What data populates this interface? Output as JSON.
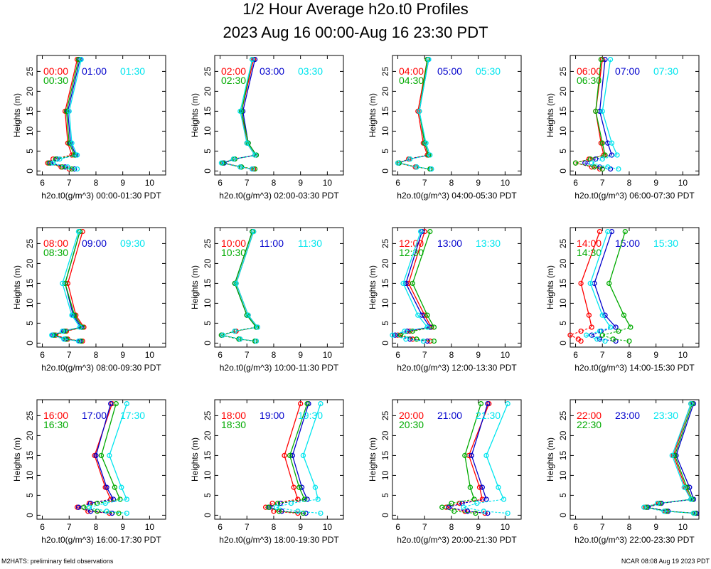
{
  "title_line1": "1/2 Hour Average h2o.t0 Profiles",
  "title_line2": "2023 Aug 16 00:00-Aug 16 23:30 PDT",
  "footer_left": "M2HATS: preliminary field observations",
  "footer_right": "NCAR 08:08 Aug 19 2023 PDT",
  "colors": {
    "s0": "#ff0000",
    "s1": "#0000cc",
    "s2": "#00aa00",
    "s3": "#00e5ee"
  },
  "chart_data": {
    "type": "line",
    "ylabel": "Heights (m)",
    "heights": [
      0.5,
      1,
      2,
      3,
      4,
      7,
      15,
      28
    ],
    "xlim": [
      5.8,
      10.6
    ],
    "ylim": [
      -1,
      29
    ],
    "xticks": [
      6,
      7,
      8,
      9,
      10
    ],
    "yticks": [
      0,
      5,
      10,
      15,
      20,
      25
    ],
    "panels": [
      {
        "xlabel": "h2o.t0(g/m^3) 00:00-01:30 PDT",
        "series": [
          {
            "name": "00:00",
            "values": [
              7.0,
              6.7,
              6.2,
              6.4,
              7.1,
              6.95,
              6.85,
              7.3
            ]
          },
          {
            "name": "01:00",
            "values": [
              7.2,
              6.85,
              6.3,
              6.55,
              7.25,
              7.05,
              6.95,
              7.4
            ]
          },
          {
            "name": "00:30",
            "values": [
              7.1,
              6.75,
              6.25,
              6.5,
              7.2,
              7.0,
              6.9,
              7.35
            ]
          },
          {
            "name": "01:30",
            "values": [
              7.3,
              6.95,
              6.4,
              6.65,
              7.3,
              7.1,
              7.0,
              7.45
            ]
          }
        ]
      },
      {
        "xlabel": "h2o.t0(g/m^3) 02:00-03:30 PDT",
        "series": [
          {
            "name": "02:00",
            "values": [
              7.25,
              6.75,
              6.1,
              6.5,
              7.3,
              7.0,
              6.8,
              7.25
            ]
          },
          {
            "name": "03:00",
            "values": [
              7.2,
              6.8,
              6.15,
              6.55,
              7.35,
              7.05,
              6.85,
              7.3
            ]
          },
          {
            "name": "02:30",
            "values": [
              7.3,
              6.8,
              6.1,
              6.55,
              7.35,
              7.05,
              6.8,
              7.2
            ]
          },
          {
            "name": "03:30",
            "values": [
              7.2,
              6.75,
              6.05,
              6.5,
              7.3,
              7.0,
              6.75,
              7.2
            ]
          }
        ]
      },
      {
        "xlabel": "h2o.t0(g/m^3) 04:00-05:30 PDT",
        "series": [
          {
            "name": "04:00",
            "values": [
              7.2,
              6.65,
              6.0,
              6.4,
              7.1,
              6.95,
              6.75,
              7.1
            ]
          },
          {
            "name": "05:00",
            "values": [
              7.25,
              6.7,
              6.05,
              6.45,
              7.15,
              7.0,
              6.8,
              7.15
            ]
          },
          {
            "name": "04:30",
            "values": [
              7.2,
              6.7,
              6.05,
              6.45,
              7.15,
              7.0,
              6.8,
              7.1
            ]
          },
          {
            "name": "05:30",
            "values": [
              7.25,
              6.7,
              6.0,
              6.45,
              7.2,
              7.05,
              6.8,
              7.15
            ]
          }
        ]
      },
      {
        "xlabel": "h2o.t0(g/m^3) 06:00-07:30 PDT",
        "series": [
          {
            "name": "06:00",
            "values": [
              6.9,
              6.6,
              6.0,
              6.5,
              7.05,
              6.95,
              6.75,
              7.0
            ]
          },
          {
            "name": "07:00",
            "values": [
              7.3,
              6.9,
              6.35,
              6.75,
              7.35,
              7.2,
              6.9,
              7.1
            ]
          },
          {
            "name": "06:30",
            "values": [
              7.0,
              6.7,
              6.0,
              6.55,
              7.1,
              7.0,
              6.75,
              6.95
            ]
          },
          {
            "name": "07:30",
            "values": [
              7.6,
              7.2,
              6.6,
              7.0,
              7.55,
              7.35,
              7.0,
              7.3
            ]
          }
        ]
      },
      {
        "xlabel": "h2o.t0(g/m^3) 08:00-09:30 PDT",
        "series": [
          {
            "name": "08:00",
            "values": [
              7.5,
              6.95,
              6.5,
              6.9,
              7.55,
              7.25,
              6.95,
              7.5
            ]
          },
          {
            "name": "09:00",
            "values": [
              7.4,
              6.85,
              6.4,
              6.8,
              7.45,
              7.15,
              6.85,
              7.4
            ]
          },
          {
            "name": "08:30",
            "values": [
              7.45,
              6.9,
              6.45,
              6.85,
              7.5,
              7.2,
              6.85,
              7.4
            ]
          },
          {
            "name": "09:30",
            "values": [
              7.35,
              6.8,
              6.35,
              6.75,
              7.4,
              7.1,
              6.75,
              7.35
            ]
          }
        ]
      },
      {
        "xlabel": "h2o.t0(g/m^3) 10:00-11:30 PDT",
        "series": [
          {
            "name": "10:00",
            "values": [
              7.35,
              6.75,
              6.1,
              6.6,
              7.4,
              7.05,
              6.6,
              7.25
            ]
          },
          {
            "name": "11:00",
            "values": [
              7.3,
              6.7,
              6.05,
              6.55,
              7.35,
              7.0,
              6.55,
              7.2
            ]
          },
          {
            "name": "10:30",
            "values": [
              7.3,
              6.7,
              6.05,
              6.55,
              7.35,
              7.0,
              6.55,
              7.2
            ]
          },
          {
            "name": "11:30",
            "values": [
              7.35,
              6.75,
              6.1,
              6.55,
              7.4,
              7.05,
              6.6,
              7.25
            ]
          }
        ]
      },
      {
        "xlabel": "h2o.t0(g/m^3) 12:00-13:30 PDT",
        "series": [
          {
            "name": "12:00",
            "values": [
              7.2,
              6.55,
              6.0,
              6.45,
              7.25,
              7.0,
              6.4,
              7.0
            ]
          },
          {
            "name": "13:00",
            "values": [
              7.1,
              6.45,
              5.9,
              6.35,
              7.2,
              6.9,
              6.3,
              6.9
            ]
          },
          {
            "name": "12:30",
            "values": [
              7.35,
              6.7,
              6.1,
              6.55,
              7.35,
              7.1,
              6.55,
              7.2
            ]
          },
          {
            "name": "13:30",
            "values": [
              6.95,
              6.3,
              5.8,
              6.25,
              7.1,
              6.75,
              6.2,
              6.85
            ]
          }
        ]
      },
      {
        "xlabel": "h2o.t0(g/m^3) 14:00-15:30 PDT",
        "series": [
          {
            "name": "14:00",
            "values": [
              6.2,
              6.1,
              5.8,
              6.2,
              6.6,
              6.5,
              6.2,
              6.9
            ]
          },
          {
            "name": "15:00",
            "values": [
              7.5,
              6.9,
              6.6,
              6.95,
              7.5,
              7.1,
              6.7,
              7.35
            ]
          },
          {
            "name": "14:30",
            "values": [
              8.0,
              7.4,
              7.0,
              7.6,
              8.05,
              7.8,
              7.25,
              7.85
            ]
          },
          {
            "name": "15:30",
            "values": [
              7.1,
              6.8,
              6.4,
              6.9,
              7.3,
              7.0,
              6.55,
              7.2
            ]
          }
        ]
      },
      {
        "xlabel": "h2o.t0(g/m^3) 16:00-17:30 PDT",
        "series": [
          {
            "name": "16:00",
            "values": [
              8.5,
              7.7,
              7.3,
              7.75,
              8.55,
              8.35,
              7.95,
              8.6
            ]
          },
          {
            "name": "17:00",
            "values": [
              8.6,
              7.8,
              7.35,
              7.8,
              8.65,
              8.4,
              8.0,
              8.55
            ]
          },
          {
            "name": "16:30",
            "values": [
              8.85,
              8.05,
              7.55,
              8.05,
              8.9,
              8.7,
              8.2,
              8.75
            ]
          },
          {
            "name": "17:30",
            "values": [
              9.15,
              8.4,
              7.75,
              8.35,
              9.15,
              8.95,
              8.5,
              9.15
            ]
          }
        ]
      },
      {
        "xlabel": "h2o.t0(g/m^3) 18:00-19:30 PDT",
        "series": [
          {
            "name": "18:00",
            "values": [
              8.9,
              8.0,
              7.7,
              7.95,
              8.9,
              8.75,
              8.4,
              9.0
            ]
          },
          {
            "name": "19:00",
            "values": [
              9.2,
              8.3,
              7.85,
              8.25,
              9.25,
              9.05,
              8.7,
              9.3
            ]
          },
          {
            "name": "18:30",
            "values": [
              9.1,
              8.2,
              7.8,
              8.15,
              9.15,
              8.95,
              8.6,
              9.25
            ]
          },
          {
            "name": "19:30",
            "values": [
              9.75,
              8.9,
              8.1,
              8.65,
              9.65,
              9.55,
              9.1,
              9.75
            ]
          }
        ]
      },
      {
        "xlabel": "h2o.t0(g/m^3) 20:00-21:30 PDT",
        "series": [
          {
            "name": "20:00",
            "values": [
              9.25,
              8.5,
              7.8,
              8.3,
              9.15,
              9.05,
              8.65,
              9.4
            ]
          },
          {
            "name": "21:00",
            "values": [
              9.35,
              8.6,
              7.9,
              8.4,
              9.3,
              9.15,
              8.75,
              9.35
            ]
          },
          {
            "name": "20:30",
            "values": [
              8.9,
              8.1,
              7.65,
              8.0,
              8.85,
              8.7,
              8.5,
              9.1
            ]
          },
          {
            "name": "21:30",
            "values": [
              10.1,
              9.2,
              8.45,
              8.95,
              9.95,
              9.75,
              9.3,
              10.1
            ]
          }
        ]
      },
      {
        "xlabel": "h2o.t0(g/m^3) 22:00-23:30 PDT",
        "series": [
          {
            "name": "22:00",
            "values": [
              10.4,
              9.35,
              8.6,
              9.1,
              10.3,
              10.1,
              9.65,
              10.3
            ]
          },
          {
            "name": "23:00",
            "values": [
              10.5,
              9.45,
              8.7,
              9.2,
              10.4,
              10.25,
              9.75,
              10.4
            ]
          },
          {
            "name": "22:30",
            "values": [
              10.45,
              9.4,
              8.65,
              9.15,
              10.35,
              10.15,
              9.7,
              10.35
            ]
          },
          {
            "name": "23:30",
            "values": [
              10.4,
              9.3,
              8.55,
              9.05,
              10.3,
              10.05,
              9.6,
              10.3
            ]
          }
        ]
      }
    ]
  }
}
